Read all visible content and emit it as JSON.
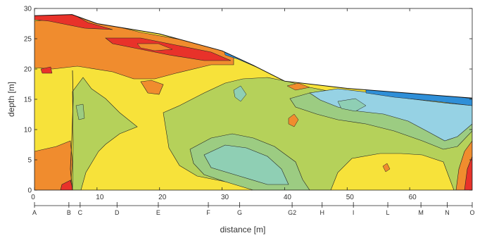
{
  "chart_data": {
    "type": "heatmap",
    "title": "",
    "xlabel": "distance [m]",
    "ylabel": "depth [m]",
    "xlim": [
      0,
      70
    ],
    "ylim": [
      0,
      30
    ],
    "xticks": [
      0,
      10,
      20,
      30,
      40,
      50,
      60
    ],
    "yticks": [
      0,
      5,
      10,
      15,
      20,
      25,
      30
    ],
    "grid": false,
    "surface_profile": [
      {
        "x": 0,
        "y": 28.8
      },
      {
        "x": 6,
        "y": 29.0
      },
      {
        "x": 10,
        "y": 27.5
      },
      {
        "x": 20,
        "y": 25.8
      },
      {
        "x": 30,
        "y": 23.0
      },
      {
        "x": 35,
        "y": 20.6
      },
      {
        "x": 40,
        "y": 18.0
      },
      {
        "x": 50,
        "y": 16.8
      },
      {
        "x": 60,
        "y": 16.0
      },
      {
        "x": 70,
        "y": 15.2
      }
    ],
    "stations": [
      {
        "label": "A",
        "x": 0
      },
      {
        "label": "B",
        "x": 5.5
      },
      {
        "label": "C",
        "x": 7.3
      },
      {
        "label": "D",
        "x": 13.2
      },
      {
        "label": "E",
        "x": 19.8
      },
      {
        "label": "F",
        "x": 27.8
      },
      {
        "label": "G",
        "x": 32.8
      },
      {
        "label": "G2",
        "x": 41.2
      },
      {
        "label": "H",
        "x": 46.0
      },
      {
        "label": "I",
        "x": 51.0
      },
      {
        "label": "L",
        "x": 56.5
      },
      {
        "label": "M",
        "x": 61.8
      },
      {
        "label": "N",
        "x": 66.0
      },
      {
        "label": "O",
        "x": 70.0
      }
    ],
    "colors": {
      "red": "#e8322a",
      "orange": "#f08c2e",
      "yellow": "#f7e23a",
      "yellow_green": "#b5d15a",
      "green": "#9ccc82",
      "teal": "#8fcfb4",
      "light_blue": "#96d2e4",
      "blue": "#2f8fd8"
    }
  }
}
